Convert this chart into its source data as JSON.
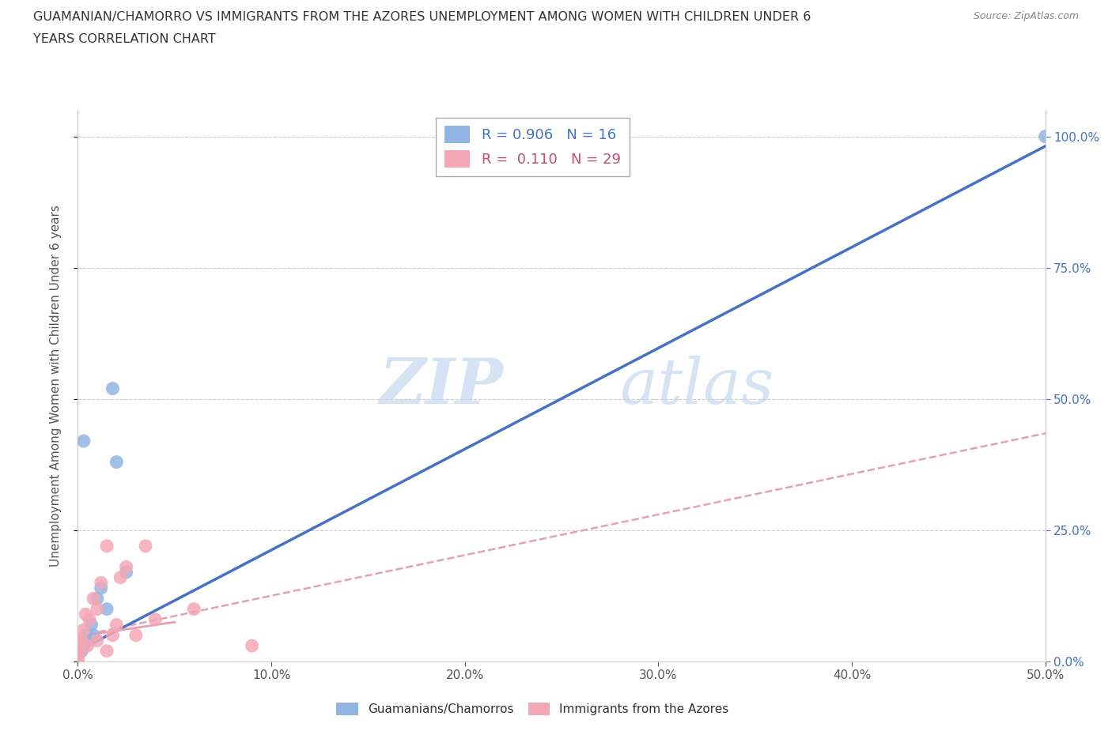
{
  "title_line1": "GUAMANIAN/CHAMORRO VS IMMIGRANTS FROM THE AZORES UNEMPLOYMENT AMONG WOMEN WITH CHILDREN UNDER 6",
  "title_line2": "YEARS CORRELATION CHART",
  "source": "Source: ZipAtlas.com",
  "ylabel": "Unemployment Among Women with Children Under 6 years",
  "xlim": [
    0,
    0.5
  ],
  "ylim": [
    0,
    1.05
  ],
  "legend_label1": "R = 0.906   N = 16",
  "legend_label2": "R =  0.110   N = 29",
  "legend_bottom_label1": "Guamanians/Chamorros",
  "legend_bottom_label2": "Immigrants from the Azores",
  "color_blue": "#92b4e3",
  "color_pink": "#f4a7b5",
  "color_blue_line": "#4472c4",
  "color_pink_line": "#e8a0b0",
  "watermark_zip": "ZIP",
  "watermark_atlas": "atlas",
  "guam_x": [
    0.0,
    0.0,
    0.002,
    0.003,
    0.004,
    0.005,
    0.007,
    0.008,
    0.01,
    0.012,
    0.015,
    0.018,
    0.02,
    0.025,
    0.003,
    0.5
  ],
  "guam_y": [
    0.0,
    0.01,
    0.02,
    0.03,
    0.05,
    0.04,
    0.07,
    0.05,
    0.12,
    0.14,
    0.1,
    0.52,
    0.38,
    0.17,
    0.42,
    1.0
  ],
  "azores_x": [
    0.0,
    0.0,
    0.0,
    0.0,
    0.0,
    0.0,
    0.0,
    0.0,
    0.001,
    0.002,
    0.003,
    0.004,
    0.005,
    0.006,
    0.008,
    0.01,
    0.01,
    0.012,
    0.015,
    0.015,
    0.018,
    0.02,
    0.022,
    0.025,
    0.03,
    0.035,
    0.04,
    0.06,
    0.09
  ],
  "azores_y": [
    0.0,
    0.005,
    0.01,
    0.015,
    0.02,
    0.025,
    0.03,
    0.04,
    0.02,
    0.04,
    0.06,
    0.09,
    0.03,
    0.08,
    0.12,
    0.04,
    0.1,
    0.15,
    0.02,
    0.22,
    0.05,
    0.07,
    0.16,
    0.18,
    0.05,
    0.22,
    0.08,
    0.1,
    0.03
  ],
  "xticks": [
    0.0,
    0.1,
    0.2,
    0.3,
    0.4,
    0.5
  ],
  "xtick_labels": [
    "0.0%",
    "10.0%",
    "20.0%",
    "30.0%",
    "40.0%",
    "50.0%"
  ],
  "yticks": [
    0.0,
    0.25,
    0.5,
    0.75,
    1.0
  ],
  "ytick_labels": [
    "0.0%",
    "25.0%",
    "50.0%",
    "75.0%",
    "100.0%"
  ],
  "grid_color": "#cccccc",
  "spine_color": "#cccccc"
}
